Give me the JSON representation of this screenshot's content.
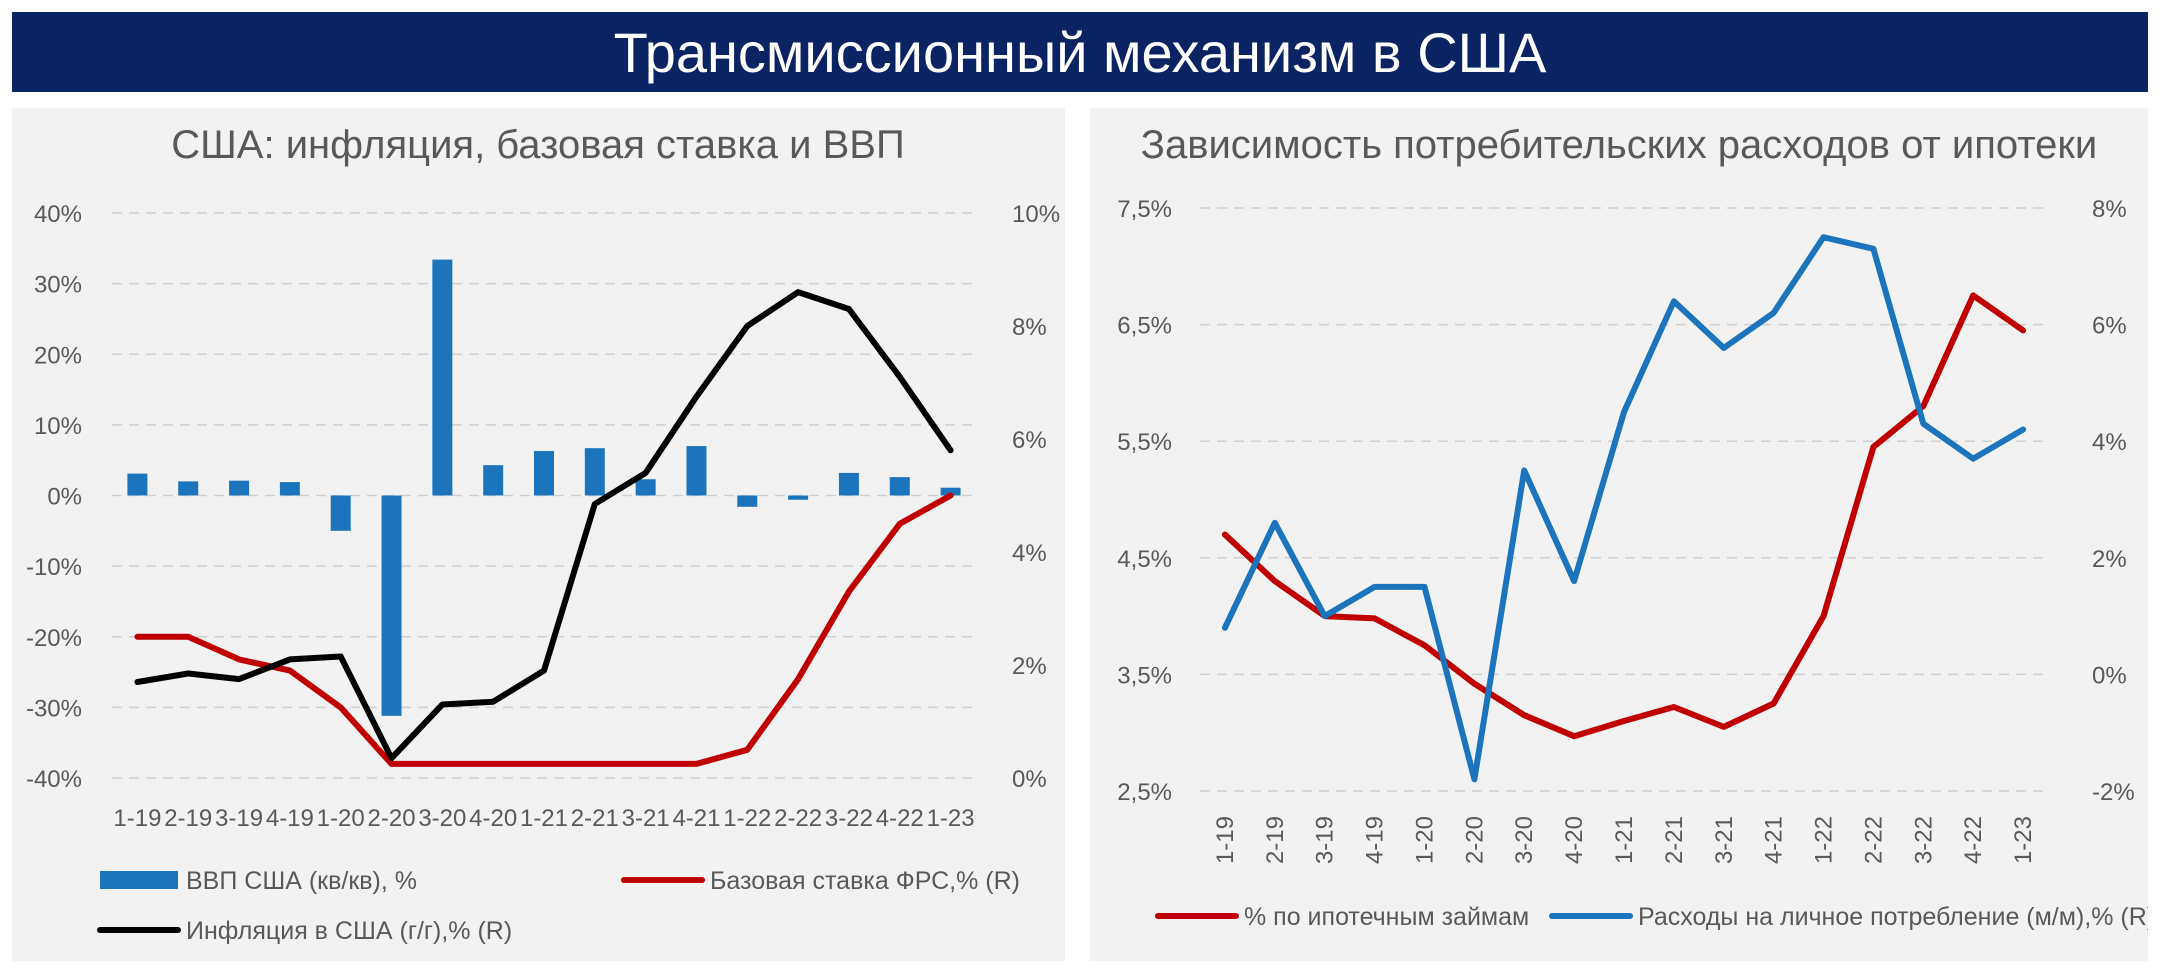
{
  "banner": {
    "title": "Трансмиссионный механизм в США"
  },
  "colors": {
    "banner_bg": "#0a2362",
    "blue": "#1c75bc",
    "red": "#c00000",
    "black": "#000000",
    "axis_text": "#595959",
    "title_text": "#595959"
  },
  "chart_data": [
    {
      "type": "bar+line",
      "title": "США: инфляция, базовая ставка и ВВП",
      "categories": [
        "1-19",
        "2-19",
        "3-19",
        "4-19",
        "1-20",
        "2-20",
        "3-20",
        "4-20",
        "1-21",
        "2-21",
        "3-21",
        "4-21",
        "1-22",
        "2-22",
        "3-22",
        "4-22",
        "1-23"
      ],
      "left_axis": {
        "min": -40,
        "max": 40,
        "step": 10,
        "ticks": [
          "40%",
          "30%",
          "20%",
          "10%",
          "0%",
          "-10%",
          "-20%",
          "-30%",
          "-40%"
        ]
      },
      "right_axis": {
        "min": 0,
        "max": 10,
        "step": 2,
        "ticks": [
          "10%",
          "8%",
          "6%",
          "4%",
          "2%",
          "0%"
        ]
      },
      "series": [
        {
          "name": "ВВП США (кв/кв), %",
          "type": "bar",
          "axis": "left",
          "color": "#1c75bc",
          "values": [
            3.1,
            2.0,
            2.1,
            1.9,
            -5.0,
            -31.2,
            33.4,
            4.3,
            6.3,
            6.7,
            2.3,
            7.0,
            -1.6,
            -0.6,
            3.2,
            2.6,
            1.1
          ]
        },
        {
          "name": "Базовая ставка ФРС,% (R)",
          "type": "line",
          "axis": "right",
          "color": "#c00000",
          "values": [
            2.5,
            2.5,
            2.1,
            1.9,
            1.25,
            0.25,
            0.25,
            0.25,
            0.25,
            0.25,
            0.25,
            0.25,
            0.5,
            1.75,
            3.3,
            4.5,
            5.0
          ]
        },
        {
          "name": "Инфляция в США (г/г),% (R)",
          "type": "line",
          "axis": "right",
          "color": "#000000",
          "values": [
            1.7,
            1.85,
            1.75,
            2.1,
            2.15,
            0.35,
            1.3,
            1.35,
            1.9,
            4.85,
            5.4,
            6.75,
            8.0,
            8.6,
            8.3,
            7.1,
            5.8
          ]
        }
      ],
      "legend": [
        "ВВП США (кв/кв), %",
        "Базовая ставка ФРС,% (R)",
        "Инфляция в США (г/г),% (R)"
      ],
      "grid": true
    },
    {
      "type": "line",
      "title": "Зависимость потребительских расходов от ипотеки",
      "categories": [
        "1-19",
        "2-19",
        "3-19",
        "4-19",
        "1-20",
        "2-20",
        "3-20",
        "4-20",
        "1-21",
        "2-21",
        "3-21",
        "4-21",
        "1-22",
        "2-22",
        "3-22",
        "4-22",
        "1-23"
      ],
      "left_axis": {
        "min": 2.5,
        "max": 7.5,
        "step": 1,
        "ticks": [
          "7,5%",
          "6,5%",
          "5,5%",
          "4,5%",
          "3,5%",
          "2,5%"
        ]
      },
      "right_axis": {
        "min": -2,
        "max": 8,
        "step": 2,
        "ticks": [
          "8%",
          "6%",
          "4%",
          "2%",
          "0%",
          "-2%"
        ]
      },
      "series": [
        {
          "name": "% по ипотечным займам",
          "type": "line",
          "axis": "left",
          "color": "#c00000",
          "values": [
            4.7,
            4.3,
            4.0,
            3.98,
            3.75,
            3.42,
            3.15,
            2.97,
            3.1,
            3.22,
            3.05,
            3.25,
            4.0,
            5.45,
            5.8,
            6.75,
            6.45
          ]
        },
        {
          "name": "Расходы на личное потребление (м/м),% (R)",
          "type": "line",
          "axis": "right",
          "color": "#1c75bc",
          "values": [
            0.8,
            2.6,
            1.0,
            1.5,
            1.5,
            -1.8,
            3.5,
            1.6,
            4.5,
            6.4,
            5.6,
            6.2,
            7.5,
            7.3,
            4.3,
            3.7,
            4.2
          ]
        }
      ],
      "legend": [
        "% по ипотечным займам",
        "Расходы на личное потребление (м/м),% (R)"
      ],
      "grid": true
    }
  ]
}
